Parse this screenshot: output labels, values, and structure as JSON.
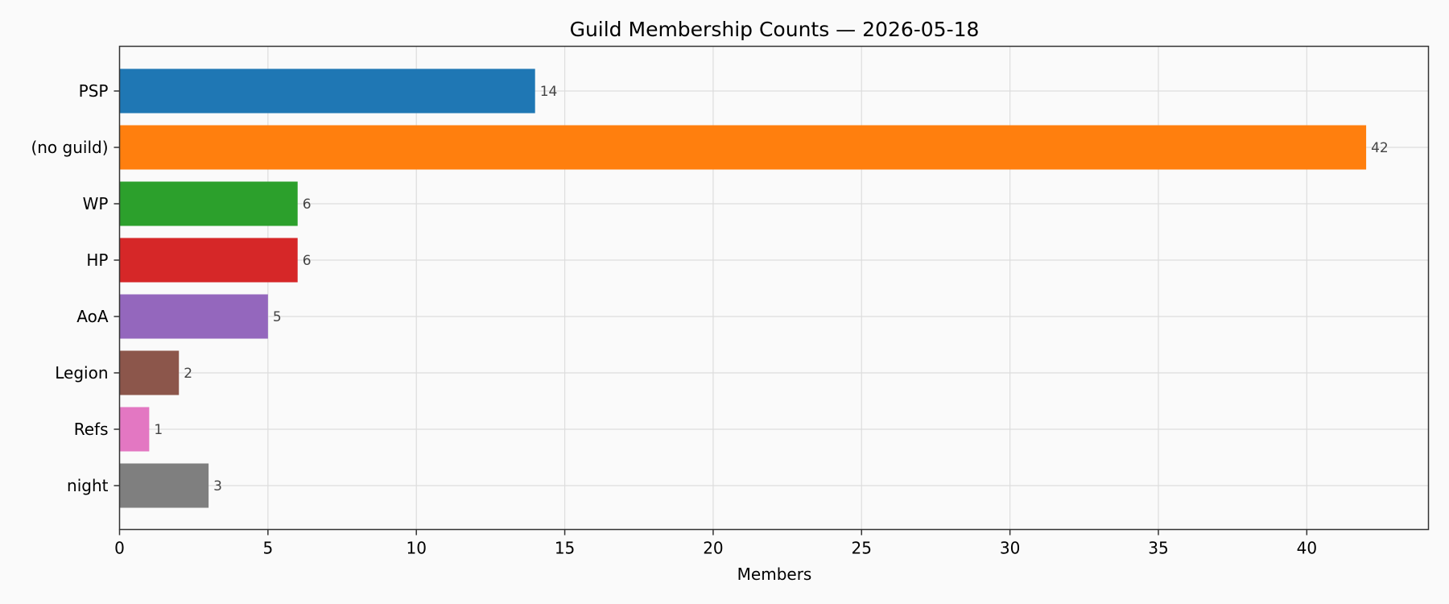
{
  "chart_data": {
    "type": "bar",
    "orientation": "horizontal",
    "title": "Guild Membership Counts — 2026-05-18",
    "xlabel": "Members",
    "ylabel": "",
    "categories": [
      "PSP",
      "(no guild)",
      "WP",
      "HP",
      "AoA",
      "Legion",
      "Refs",
      "night"
    ],
    "values": [
      14,
      42,
      6,
      6,
      5,
      2,
      1,
      3
    ],
    "colors": [
      "#1f77b4",
      "#ff7f0e",
      "#2ca02c",
      "#d62728",
      "#9467bd",
      "#8c564b",
      "#e377c2",
      "#7f7f7f"
    ],
    "xlim": [
      0,
      44.1
    ],
    "xticks": [
      0,
      5,
      10,
      15,
      20,
      25,
      30,
      35,
      40
    ],
    "grid": true,
    "data_labels": true
  }
}
